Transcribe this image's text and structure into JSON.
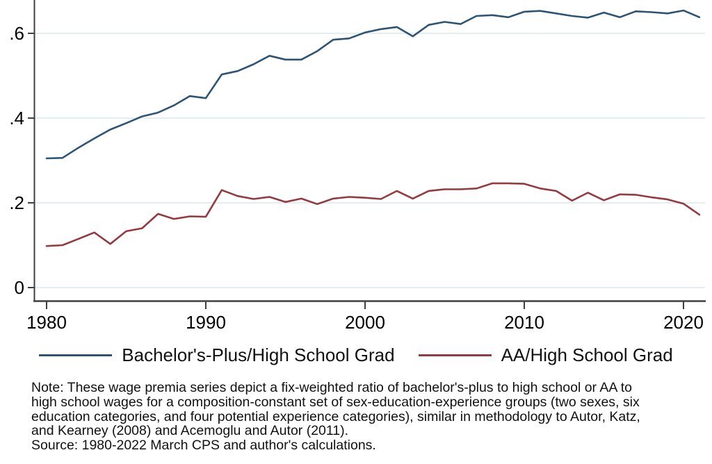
{
  "chart_data": {
    "type": "line",
    "title": "",
    "xlabel": "",
    "ylabel": "",
    "grid": "horizontal",
    "legend_position": "bottom",
    "xlim": [
      1979.2,
      2021.8
    ],
    "ylim": [
      -0.03,
      0.68
    ],
    "xticks": [
      1980,
      1990,
      2000,
      2010,
      2020
    ],
    "xtick_labels": [
      "1980",
      "1990",
      "2000",
      "2010",
      "2020"
    ],
    "yticks": [
      0,
      0.2,
      0.4,
      0.6
    ],
    "ytick_labels": [
      "0",
      ".2",
      ".4",
      ".6"
    ],
    "x": [
      1980,
      1981,
      1982,
      1983,
      1984,
      1985,
      1986,
      1987,
      1988,
      1989,
      1990,
      1991,
      1992,
      1993,
      1994,
      1995,
      1996,
      1997,
      1998,
      1999,
      2000,
      2001,
      2002,
      2003,
      2004,
      2005,
      2006,
      2007,
      2008,
      2009,
      2010,
      2011,
      2012,
      2013,
      2014,
      2015,
      2016,
      2017,
      2018,
      2019,
      2020,
      2021
    ],
    "series": [
      {
        "name": "Bachelor's-Plus/High School Grad",
        "color": "#2d5475",
        "values": [
          0.305,
          0.306,
          0.33,
          0.352,
          0.373,
          0.388,
          0.404,
          0.413,
          0.43,
          0.452,
          0.447,
          0.503,
          0.511,
          0.527,
          0.547,
          0.538,
          0.538,
          0.558,
          0.585,
          0.588,
          0.602,
          0.61,
          0.615,
          0.593,
          0.62,
          0.627,
          0.622,
          0.641,
          0.643,
          0.638,
          0.651,
          0.653,
          0.647,
          0.641,
          0.637,
          0.649,
          0.638,
          0.652,
          0.65,
          0.647,
          0.654,
          0.638
        ]
      },
      {
        "name": "AA/High School Grad",
        "color": "#943a40",
        "values": [
          0.098,
          0.1,
          0.115,
          0.13,
          0.103,
          0.133,
          0.14,
          0.174,
          0.162,
          0.168,
          0.167,
          0.23,
          0.216,
          0.209,
          0.214,
          0.202,
          0.21,
          0.197,
          0.21,
          0.214,
          0.212,
          0.209,
          0.228,
          0.21,
          0.228,
          0.232,
          0.232,
          0.234,
          0.246,
          0.246,
          0.245,
          0.234,
          0.228,
          0.205,
          0.224,
          0.206,
          0.22,
          0.219,
          0.213,
          0.208,
          0.198,
          0.172
        ]
      }
    ]
  },
  "style": {
    "axis_color": "#3f3f3f",
    "grid_color": "#e4eef1",
    "tick_label_color": "#000000",
    "background": "#ffffff"
  },
  "legend": {
    "items": [
      {
        "label": "Bachelor's-Plus/High School Grad"
      },
      {
        "label": "AA/High School Grad"
      }
    ]
  },
  "note": {
    "lines": [
      "Note: These wage premia series depict a fix-weighted ratio of bachelor's-plus to high school or AA to",
      "high school wages for a composition-constant set of sex-education-experience groups (two sexes, six",
      "education categories, and four potential experience categories), similar in methodology to Autor, Katz,",
      "and Kearney (2008) and Acemoglu and Autor (2011).",
      "Source: 1980-2022 March CPS and author's calculations."
    ]
  }
}
